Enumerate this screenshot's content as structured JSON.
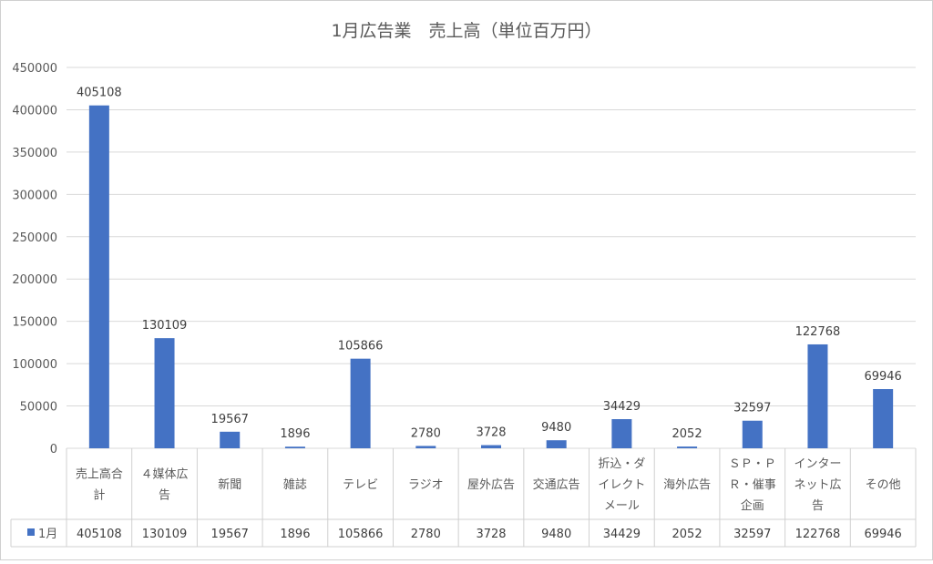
{
  "chart_data": {
    "type": "bar",
    "title": "1月広告業　売上高（単位百万円）",
    "categories": [
      [
        "売上高合",
        "計"
      ],
      [
        "４媒体広",
        "告"
      ],
      [
        "新聞"
      ],
      [
        "雑誌"
      ],
      [
        "テレビ"
      ],
      [
        "ラジオ"
      ],
      [
        "屋外広告"
      ],
      [
        "交通広告"
      ],
      [
        "折込・ダ",
        "イレクト",
        "メール"
      ],
      [
        "海外広告"
      ],
      [
        "ＳＰ・Ｐ",
        "Ｒ・催事",
        "企画"
      ],
      [
        "インター",
        "ネット広",
        "告"
      ],
      [
        "その他"
      ]
    ],
    "series": [
      {
        "name": "1月",
        "values": [
          405108,
          130109,
          19567,
          1896,
          105866,
          2780,
          3728,
          9480,
          34429,
          2052,
          32597,
          122768,
          69946
        ]
      }
    ],
    "ylim": [
      0,
      450000
    ],
    "yticks": [
      0,
      50000,
      100000,
      150000,
      200000,
      250000,
      300000,
      350000,
      400000,
      450000
    ],
    "grid": true,
    "data_table": true,
    "colors": {
      "bar": "#4472C4",
      "grid": "#D9D9D9",
      "axis_text": "#595959",
      "label_text": "#404040",
      "border": "#D0D0D0"
    }
  }
}
